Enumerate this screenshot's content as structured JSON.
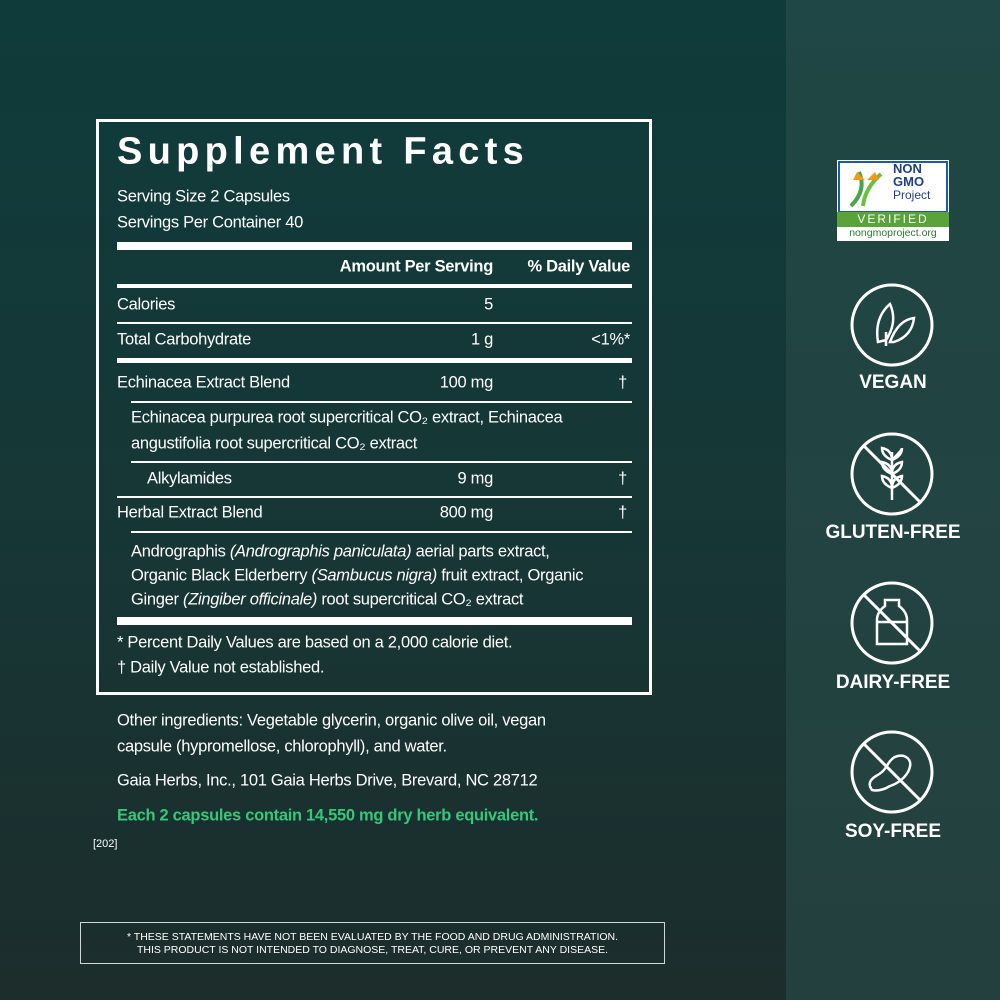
{
  "facts": {
    "title": "Supplement Facts",
    "serving_size": "Serving Size 2 Capsules",
    "servings_per_container": "Servings Per Container 40",
    "header": {
      "amount": "Amount Per Serving",
      "dv": "% Daily Value"
    },
    "rows": [
      {
        "name": "Calories",
        "amount": "5"
      },
      {
        "name": "Total Carbohydrate",
        "amount": "1 g",
        "dv": "<1%*"
      },
      {
        "name": "Echinacea Extract Blend",
        "amount": "100 mg",
        "dv": "†"
      },
      {
        "lines": [
          "Echinacea purpurea root supercritical CO₂ extract, Echinacea",
          "angustifolia root supercritical CO₂ extract"
        ]
      },
      {
        "name": "Alkylamides",
        "amount": "9 mg",
        "dv": "†"
      },
      {
        "name": "Herbal Extract Blend",
        "amount": "800 mg",
        "dv": "†"
      },
      {
        "lines": [
          [
            "Andrographis ",
            "(Andrographis paniculata)",
            " aerial parts extract,"
          ],
          [
            "Organic Black Elderberry ",
            "(Sambucus nigra)",
            " fruit extract, Organic"
          ],
          [
            "Ginger ",
            "(Zingiber officinale)",
            " root supercritical CO₂ extract"
          ]
        ]
      }
    ],
    "footnotes": [
      "*  Percent Daily Values are based on a 2,000 calorie diet.",
      "† Daily Value not established."
    ]
  },
  "other_ingredients": [
    "Other ingredients: Vegetable glycerin, organic olive oil, vegan",
    "capsule (hypromellose, chlorophyll), and water."
  ],
  "address": "Gaia Herbs, Inc., 101 Gaia Herbs Drive, Brevard, NC 28712",
  "highlight": "Each 2 capsules contain 14,550 mg dry herb equivalent.",
  "code": "[202]",
  "disclaimer": [
    "* THESE STATEMENTS HAVE NOT BEEN EVALUATED BY THE FOOD AND DRUG ADMINISTRATION.",
    "THIS PRODUCT IS NOT INTENDED TO DIAGNOSE, TREAT, CURE, OR PREVENT ANY DISEASE."
  ],
  "non_gmo": {
    "line1": "NON",
    "line2": "GMO",
    "line3": "Project",
    "verified": "VERIFIED",
    "url": "nongmoproject.org"
  },
  "badges": [
    "VEGAN",
    "GLUTEN-FREE",
    "DAIRY-FREE",
    "SOY-FREE"
  ]
}
